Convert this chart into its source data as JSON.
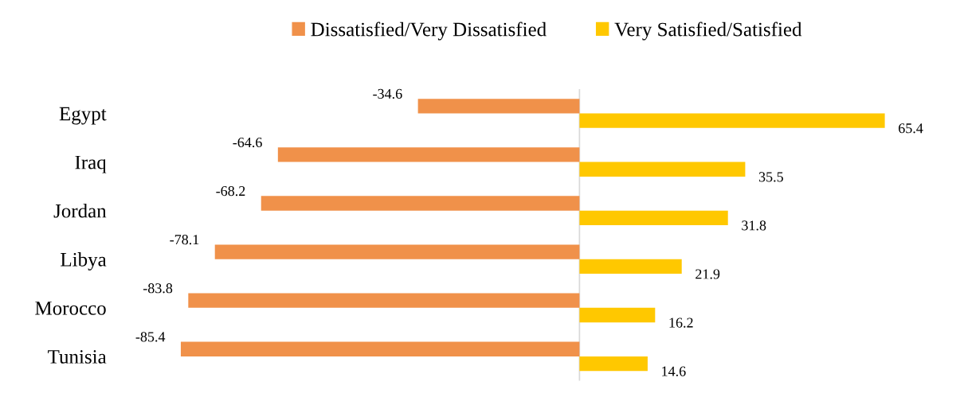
{
  "chart_data": {
    "type": "bar",
    "orientation": "horizontal",
    "categories": [
      "Egypt",
      "Iraq",
      "Jordan",
      "Libya",
      "Morocco",
      "Tunisia"
    ],
    "series": [
      {
        "name": "Dissatisfied/Very Dissatisfied",
        "color": "#f0914a",
        "values": [
          -34.6,
          -64.6,
          -68.2,
          -78.1,
          -83.8,
          -85.4
        ]
      },
      {
        "name": "Very Satisfied/Satisfied",
        "color": "#ffc800",
        "values": [
          65.4,
          35.5,
          31.8,
          21.9,
          16.2,
          14.6
        ]
      }
    ],
    "tick_labels": "y",
    "data_labels": true,
    "legend": "top",
    "grid": false
  }
}
